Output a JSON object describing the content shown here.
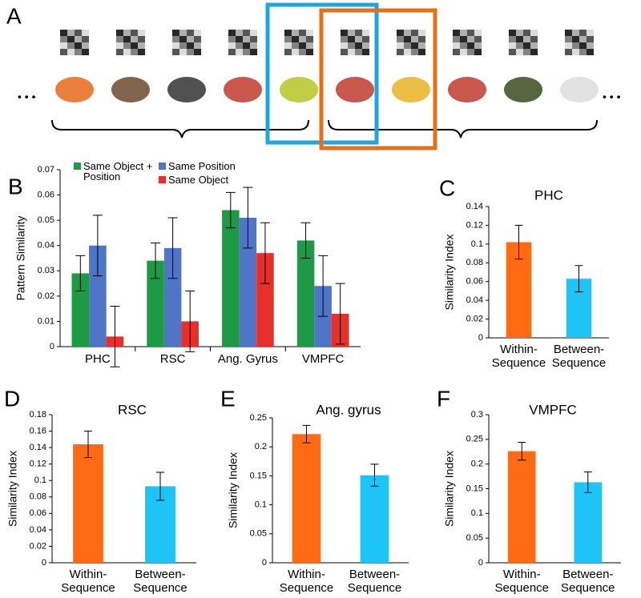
{
  "panel_a": {
    "label": "A",
    "ellipsis_left": "• • •",
    "ellipsis_right": "• • •"
  },
  "chart_data": [
    {
      "type": "grouped_bar",
      "label": "B",
      "ylabel": "Pattern Similarity",
      "categories": [
        "PHC",
        "RSC",
        "Ang. Gyrus",
        "VMPFC"
      ],
      "series": [
        {
          "name": "Same Object + Position",
          "color": "#1e9a46",
          "values": [
            0.029,
            0.034,
            0.054,
            0.042
          ],
          "errors": [
            0.007,
            0.007,
            0.007,
            0.007
          ]
        },
        {
          "name": "Same Position",
          "color": "#4f76c6",
          "values": [
            0.04,
            0.039,
            0.051,
            0.024
          ],
          "errors": [
            0.012,
            0.012,
            0.012,
            0.012
          ]
        },
        {
          "name": "Same Object",
          "color": "#e8302a",
          "values": [
            0.004,
            0.01,
            0.037,
            0.013
          ],
          "errors": [
            0.012,
            0.012,
            0.012,
            0.012
          ]
        }
      ],
      "ylim": [
        0,
        0.07
      ],
      "yticks": [
        0,
        0.01,
        0.02,
        0.03,
        0.04,
        0.05,
        0.06,
        0.07
      ]
    },
    {
      "type": "bar",
      "label": "C",
      "title": "PHC",
      "ylabel": "Similarity Index",
      "categories": [
        "Within-Sequence",
        "Between-Sequence"
      ],
      "colors": [
        "#ff6a13",
        "#1ec4f5"
      ],
      "values": [
        0.102,
        0.063
      ],
      "errors": [
        0.018,
        0.014
      ],
      "ylim": [
        0,
        0.14
      ],
      "yticks": [
        0,
        0.02,
        0.04,
        0.06,
        0.08,
        0.1,
        0.12,
        0.14
      ]
    },
    {
      "type": "bar",
      "label": "D",
      "title": "RSC",
      "ylabel": "Similarity Index",
      "categories": [
        "Within-Sequence",
        "Between-Sequence"
      ],
      "colors": [
        "#ff6a13",
        "#1ec4f5"
      ],
      "values": [
        0.144,
        0.093
      ],
      "errors": [
        0.016,
        0.017
      ],
      "ylim": [
        0,
        0.18
      ],
      "yticks": [
        0,
        0.02,
        0.04,
        0.06,
        0.08,
        0.1,
        0.12,
        0.14,
        0.16,
        0.18
      ]
    },
    {
      "type": "bar",
      "label": "E",
      "title": "Ang. gyrus",
      "ylabel": "Similarity Index",
      "categories": [
        "Within-Sequence",
        "Between-Sequence"
      ],
      "colors": [
        "#ff6a13",
        "#1ec4f5"
      ],
      "values": [
        0.222,
        0.151
      ],
      "errors": [
        0.015,
        0.019
      ],
      "ylim": [
        0,
        0.25
      ],
      "yticks": [
        0,
        0.05,
        0.1,
        0.15,
        0.2,
        0.25
      ]
    },
    {
      "type": "bar",
      "label": "F",
      "title": "VMPFC",
      "ylabel": "Similarity Index",
      "categories": [
        "Within-Sequence",
        "Between-Sequence"
      ],
      "colors": [
        "#ff6a13",
        "#1ec4f5"
      ],
      "values": [
        0.226,
        0.163
      ],
      "errors": [
        0.018,
        0.021
      ],
      "ylim": [
        0,
        0.3
      ],
      "yticks": [
        0,
        0.05,
        0.1,
        0.15,
        0.2,
        0.25,
        0.3
      ]
    }
  ]
}
